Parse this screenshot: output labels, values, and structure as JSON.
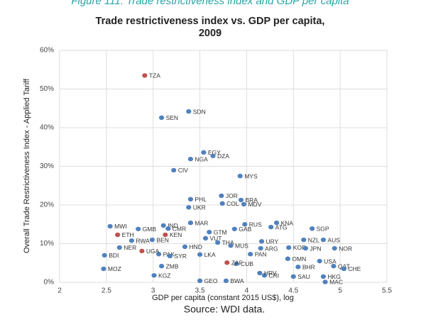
{
  "caption": "Figure 111: Trade restrictiveness index and GDP per capita",
  "source": "Source: WDI data.",
  "chart_data": {
    "type": "scatter",
    "title": "Trade restrictiveness index vs. GDP per capita,",
    "subtitle": "2009",
    "x_label": "GDP per capita (constant 2015 US$), log",
    "y_label": "Overall Trade Restrictiveness Index - Applied Tariff",
    "xlim": [
      2,
      5.5
    ],
    "xticks": [
      2,
      2.5,
      3,
      3.5,
      4,
      4.5,
      5,
      5.5
    ],
    "ylim": [
      0,
      60
    ],
    "yticks": [
      {
        "value": 0,
        "label": "0%"
      },
      {
        "value": 10,
        "label": "10%"
      },
      {
        "value": 20,
        "label": "20%"
      },
      {
        "value": 30,
        "label": "30%"
      },
      {
        "value": 40,
        "label": "40%"
      },
      {
        "value": 50,
        "label": "50%"
      },
      {
        "value": 60,
        "label": "60%"
      }
    ],
    "grid": true,
    "series": [
      {
        "color": "#4f81bd",
        "points": [
          {
            "label": "SDN",
            "x": 3.38,
            "y": 44.2
          },
          {
            "label": "SEN",
            "x": 3.09,
            "y": 42.6
          },
          {
            "label": "EGY",
            "x": 3.54,
            "y": 33.6
          },
          {
            "label": "DZA",
            "x": 3.64,
            "y": 32.7
          },
          {
            "label": "NGA",
            "x": 3.4,
            "y": 31.9
          },
          {
            "label": "CIV",
            "x": 3.22,
            "y": 29
          },
          {
            "label": "MYS",
            "x": 3.93,
            "y": 27.5
          },
          {
            "label": "JOR",
            "x": 3.73,
            "y": 22.4
          },
          {
            "label": "BRA",
            "x": 3.94,
            "y": 21.3
          },
          {
            "label": "PHL",
            "x": 3.4,
            "y": 21.5
          },
          {
            "label": "COL",
            "x": 3.74,
            "y": 20.4
          },
          {
            "label": "MDV",
            "x": 3.97,
            "y": 20.2
          },
          {
            "label": "UKR",
            "x": 3.38,
            "y": 19.4
          },
          {
            "label": "KNA",
            "x": 4.32,
            "y": 15.4
          },
          {
            "label": "ATG",
            "x": 4.26,
            "y": 14.3
          },
          {
            "label": "MAR",
            "x": 3.4,
            "y": 15.4
          },
          {
            "label": "RUS",
            "x": 3.98,
            "y": 15.0
          },
          {
            "label": "SGP",
            "x": 4.7,
            "y": 13.9
          },
          {
            "label": "MWI",
            "x": 2.54,
            "y": 14.5
          },
          {
            "label": "IND",
            "x": 3.11,
            "y": 14.7
          },
          {
            "label": "GMB",
            "x": 2.84,
            "y": 13.8
          },
          {
            "label": "CMR",
            "x": 3.16,
            "y": 13.9
          },
          {
            "label": "GTM",
            "x": 3.6,
            "y": 13.0
          },
          {
            "label": "GAB",
            "x": 3.87,
            "y": 13.8
          },
          {
            "label": "BEN",
            "x": 2.99,
            "y": 11.0
          },
          {
            "label": "RWA",
            "x": 2.77,
            "y": 10.8
          },
          {
            "label": "VUT",
            "x": 3.56,
            "y": 11.4
          },
          {
            "label": "NZL",
            "x": 4.61,
            "y": 11
          },
          {
            "label": "AUS",
            "x": 4.82,
            "y": 11
          },
          {
            "label": "URY",
            "x": 4.16,
            "y": 10.6
          },
          {
            "label": "THA",
            "x": 3.69,
            "y": 10.3
          },
          {
            "label": "MUS",
            "x": 3.83,
            "y": 9.5
          },
          {
            "label": "HND",
            "x": 3.34,
            "y": 9.2
          },
          {
            "label": "NER",
            "x": 2.64,
            "y": 9
          },
          {
            "label": "ARG",
            "x": 4.15,
            "y": 8.8
          },
          {
            "label": "KOR",
            "x": 4.45,
            "y": 9
          },
          {
            "label": "JPN",
            "x": 4.63,
            "y": 8.8
          },
          {
            "label": "NOR",
            "x": 4.94,
            "y": 8.8
          },
          {
            "label": "BDI",
            "x": 2.48,
            "y": 7
          },
          {
            "label": "PAK",
            "x": 3.06,
            "y": 7.3
          },
          {
            "label": "SYR",
            "x": 3.18,
            "y": 6.8
          },
          {
            "label": "LKA",
            "x": 3.5,
            "y": 7.2
          },
          {
            "label": "PAN",
            "x": 4.04,
            "y": 7.3
          },
          {
            "label": "OMN",
            "x": 4.44,
            "y": 6.1
          },
          {
            "label": "USA",
            "x": 4.78,
            "y": 5.5
          },
          {
            "label": "CUB",
            "x": 3.89,
            "y": 4.8
          },
          {
            "label": "MOZ",
            "x": 2.47,
            "y": 3.5
          },
          {
            "label": "ZMB",
            "x": 3.09,
            "y": 4.2
          },
          {
            "label": "BHR",
            "x": 4.55,
            "y": 4
          },
          {
            "label": "QAT",
            "x": 4.93,
            "y": 4.2
          },
          {
            "label": "CHE",
            "x": 5.04,
            "y": 3.5
          },
          {
            "label": "KGZ",
            "x": 3.01,
            "y": 1.8
          },
          {
            "label": "CRI",
            "x": 4.19,
            "y": 1.8
          },
          {
            "label": "SAU",
            "x": 4.5,
            "y": 1.5
          },
          {
            "label": "HKG",
            "x": 4.82,
            "y": 1.5
          },
          {
            "label": "MAC",
            "x": 4.84,
            "y": 0.1
          },
          {
            "label": "GEO",
            "x": 3.5,
            "y": 0.4
          },
          {
            "label": "BWA",
            "x": 3.78,
            "y": 0.4
          },
          {
            "label": "HRV",
            "x": 4.14,
            "y": 2.4
          }
        ]
      },
      {
        "color": "#c0504d",
        "points": [
          {
            "label": "TZA",
            "x": 2.91,
            "y": 53.5
          },
          {
            "label": "ETH",
            "x": 2.62,
            "y": 12.3
          },
          {
            "label": "KEN",
            "x": 3.13,
            "y": 12.3
          },
          {
            "label": "UGA",
            "x": 2.88,
            "y": 8.1
          },
          {
            "label": "ZAF",
            "x": 3.79,
            "y": 5.1
          }
        ]
      }
    ]
  }
}
